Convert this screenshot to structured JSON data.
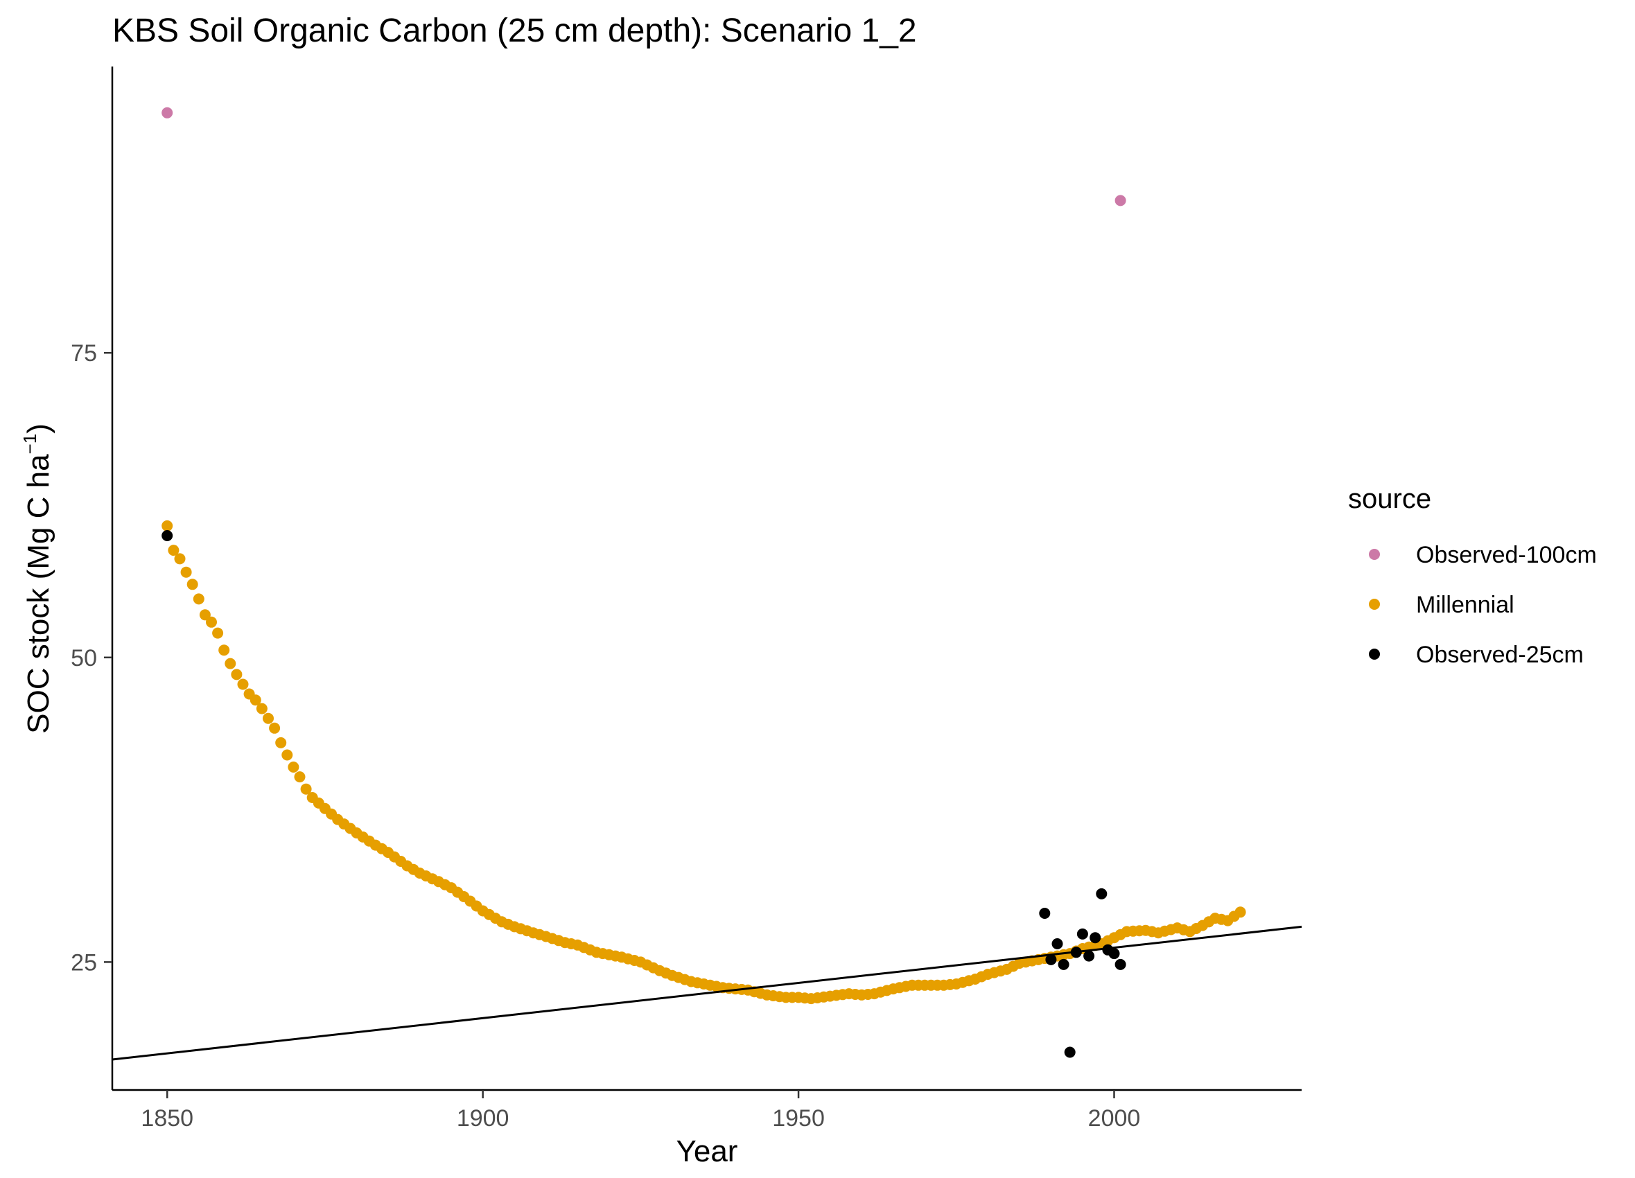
{
  "chart_data": {
    "type": "scatter",
    "title": "KBS Soil Organic Carbon (25 cm depth): Scenario  1_2",
    "xlabel": "Year",
    "ylabel_main": "SOC stock (Mg C ha",
    "ylabel_sup": "−1",
    "ylabel_close": ")",
    "xlim": [
      1841.3,
      2029.7
    ],
    "ylim": [
      14.5,
      98.5
    ],
    "x_ticks": [
      1850,
      1900,
      1950,
      2000
    ],
    "y_ticks": [
      25,
      50,
      75
    ],
    "x_tick_labels": [
      "1850",
      "1900",
      "1950",
      "2000"
    ],
    "y_tick_labels": [
      "25",
      "50",
      "75"
    ],
    "grid": false,
    "legend_placement": "right",
    "legend_title": "source",
    "series": [
      {
        "name": "Observed-100cm",
        "color": "#CC79A7",
        "points": [
          [
            1850,
            94.7
          ],
          [
            2001,
            87.5
          ]
        ]
      },
      {
        "name": "Millennial",
        "color": "#E69F00",
        "anchors": [
          [
            1850,
            60.8
          ],
          [
            1851,
            58.8
          ],
          [
            1852,
            58.1
          ],
          [
            1853,
            57.0
          ],
          [
            1854,
            56.0
          ],
          [
            1855,
            54.8
          ],
          [
            1856,
            53.5
          ],
          [
            1857,
            52.9
          ],
          [
            1858,
            52.0
          ],
          [
            1859,
            50.6
          ],
          [
            1860,
            49.5
          ],
          [
            1861,
            48.6
          ],
          [
            1862,
            47.8
          ],
          [
            1863,
            47.0
          ],
          [
            1864,
            46.5
          ],
          [
            1865,
            45.8
          ],
          [
            1866,
            45.0
          ],
          [
            1867,
            44.2
          ],
          [
            1868,
            43.0
          ],
          [
            1869,
            42.0
          ],
          [
            1870,
            41.0
          ],
          [
            1871,
            40.2
          ],
          [
            1872,
            39.2
          ],
          [
            1873,
            38.5
          ],
          [
            1875,
            37.6
          ],
          [
            1877,
            36.7
          ],
          [
            1880,
            35.6
          ],
          [
            1883,
            34.6
          ],
          [
            1885,
            34.0
          ],
          [
            1888,
            32.9
          ],
          [
            1890,
            32.3
          ],
          [
            1893,
            31.6
          ],
          [
            1895,
            31.1
          ],
          [
            1898,
            30.0
          ],
          [
            1900,
            29.2
          ],
          [
            1903,
            28.3
          ],
          [
            1905,
            27.9
          ],
          [
            1908,
            27.4
          ],
          [
            1910,
            27.1
          ],
          [
            1913,
            26.6
          ],
          [
            1915,
            26.4
          ],
          [
            1918,
            25.8
          ],
          [
            1920,
            25.6
          ],
          [
            1922,
            25.4
          ],
          [
            1925,
            25.0
          ],
          [
            1928,
            24.3
          ],
          [
            1930,
            23.9
          ],
          [
            1933,
            23.4
          ],
          [
            1935,
            23.2
          ],
          [
            1938,
            22.9
          ],
          [
            1940,
            22.8
          ],
          [
            1942,
            22.7
          ],
          [
            1945,
            22.3
          ],
          [
            1948,
            22.1
          ],
          [
            1950,
            22.1
          ],
          [
            1952,
            22.0
          ],
          [
            1955,
            22.2
          ],
          [
            1958,
            22.4
          ],
          [
            1960,
            22.3
          ],
          [
            1962,
            22.4
          ],
          [
            1965,
            22.8
          ],
          [
            1968,
            23.1
          ],
          [
            1970,
            23.1
          ],
          [
            1973,
            23.1
          ],
          [
            1975,
            23.2
          ],
          [
            1978,
            23.6
          ],
          [
            1980,
            24.0
          ],
          [
            1983,
            24.4
          ],
          [
            1985,
            24.9
          ],
          [
            1988,
            25.2
          ],
          [
            1990,
            25.4
          ],
          [
            1993,
            25.7
          ],
          [
            1995,
            26.1
          ],
          [
            1998,
            26.5
          ],
          [
            2000,
            27.0
          ],
          [
            2002,
            27.5
          ],
          [
            2005,
            27.6
          ],
          [
            2007,
            27.4
          ],
          [
            2010,
            27.8
          ],
          [
            2012,
            27.5
          ],
          [
            2014,
            28.0
          ],
          [
            2016,
            28.6
          ],
          [
            2018,
            28.4
          ],
          [
            2020,
            29.1
          ]
        ]
      },
      {
        "name": "Observed-25cm",
        "color": "#000000",
        "points": [
          [
            1850,
            60.0
          ],
          [
            1989,
            29.0
          ],
          [
            1990,
            25.2
          ],
          [
            1991,
            26.5
          ],
          [
            1992,
            24.8
          ],
          [
            1993,
            17.6
          ],
          [
            1994,
            25.8
          ],
          [
            1995,
            27.3
          ],
          [
            1996,
            25.5
          ],
          [
            1997,
            27.0
          ],
          [
            1998,
            30.6
          ],
          [
            1999,
            26.0
          ],
          [
            2000,
            25.7
          ],
          [
            2001,
            24.8
          ]
        ]
      }
    ],
    "trend_line": {
      "color": "#000000",
      "points": [
        [
          1841.3,
          17.0
        ],
        [
          2029.7,
          27.9
        ]
      ]
    }
  }
}
